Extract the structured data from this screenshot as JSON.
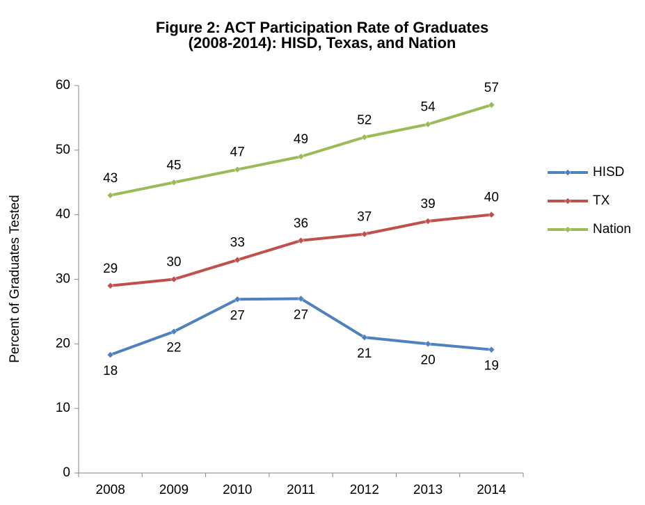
{
  "chart_data": {
    "type": "line",
    "title": [
      "Figure 2: ACT Participation Rate of Graduates",
      "(2008-2014): HISD, Texas, and Nation"
    ],
    "y_label": "Percent of Graduates Tested",
    "categories": [
      "2008",
      "2009",
      "2010",
      "2011",
      "2012",
      "2013",
      "2014"
    ],
    "series": [
      {
        "name": "HISD",
        "color": "#4f81bd",
        "values": [
          18.3,
          21.9,
          26.9,
          27.0,
          21.0,
          20.0,
          19.1
        ],
        "value_labels": [
          "18",
          "22",
          "27",
          "27",
          "21",
          "20",
          "19"
        ],
        "label_position": "below"
      },
      {
        "name": "TX",
        "color": "#c0504d",
        "values": [
          29,
          30,
          33,
          36,
          37,
          39,
          40
        ],
        "label_position": "above"
      },
      {
        "name": "Nation",
        "color": "#9bbb59",
        "values": [
          43,
          45,
          47,
          49,
          52,
          54,
          57
        ],
        "label_position": "above"
      }
    ],
    "ylim": [
      0,
      60
    ],
    "yticks": [
      0,
      10,
      20,
      30,
      40,
      50,
      60
    ],
    "grid": false,
    "legend": "right"
  }
}
